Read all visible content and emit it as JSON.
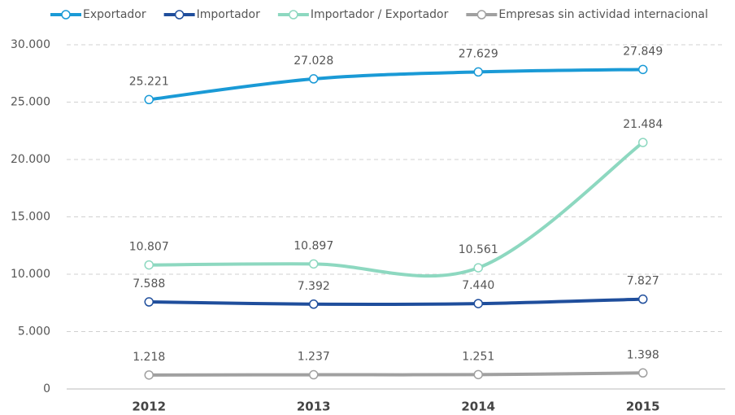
{
  "chart_data": {
    "type": "line",
    "categories": [
      "2012",
      "2013",
      "2014",
      "2015"
    ],
    "series": [
      {
        "name": "Exportador",
        "color": "#1a9ad6",
        "values": [
          25221,
          27028,
          27629,
          27849
        ],
        "value_labels": [
          "25.221",
          "27.028",
          "27.629",
          "27.849"
        ]
      },
      {
        "name": "Importador",
        "color": "#1f4e9c",
        "values": [
          7588,
          7392,
          7440,
          7827
        ],
        "value_labels": [
          "7.588",
          "7.392",
          "7.440",
          "7.827"
        ]
      },
      {
        "name": "Importador / Exportador",
        "color": "#8dd8c0",
        "values": [
          10807,
          10897,
          10561,
          21484
        ],
        "value_labels": [
          "10.807",
          "10.897",
          "10.561",
          "21.484"
        ]
      },
      {
        "name": "Empresas sin actividad internacional",
        "color": "#a0a0a0",
        "values": [
          1218,
          1237,
          1251,
          1398
        ],
        "value_labels": [
          "1.218",
          "1.237",
          "1.251",
          "1.398"
        ]
      }
    ],
    "ylim": [
      0,
      30000
    ],
    "yticks": [
      0,
      {
        "value": 5000,
        "label": "5.000"
      },
      {
        "value": 10000,
        "label": "10.000"
      },
      {
        "value": 15000,
        "label": "15.000"
      },
      {
        "value": 20000,
        "label": "20.000"
      },
      {
        "value": 25000,
        "label": "25.000"
      },
      {
        "value": 30000,
        "label": "30.000"
      }
    ],
    "grid": true,
    "legend": "top"
  }
}
